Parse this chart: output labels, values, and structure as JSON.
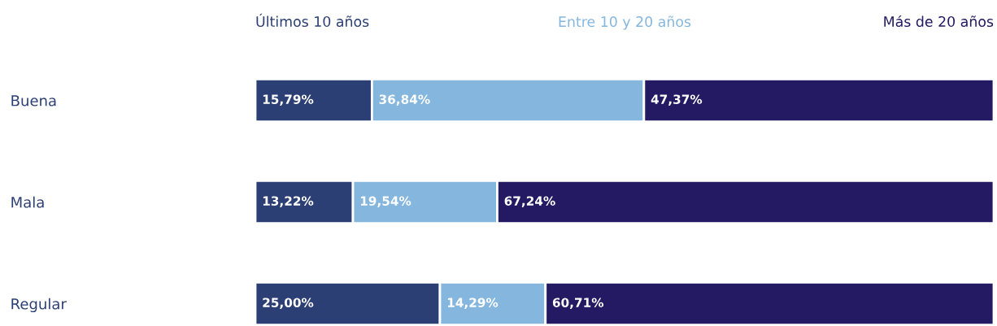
{
  "chart_data": {
    "type": "bar",
    "orientation": "horizontal",
    "stacked": true,
    "categories": [
      "Buena",
      "Mala",
      "Regular"
    ],
    "series": [
      {
        "name": "Últimos 10 años",
        "color": "#2b3f74",
        "values": [
          15.79,
          13.22,
          25.0
        ],
        "value_labels": [
          "15,79%",
          "13,22%",
          "25,00%"
        ]
      },
      {
        "name": "Entre 10 y 20 años",
        "color": "#84b6de",
        "values": [
          36.84,
          19.54,
          14.29
        ],
        "value_labels": [
          "36,84%",
          "19,54%",
          "14,29%"
        ]
      },
      {
        "name": "Más de 20 años",
        "color": "#241a63",
        "values": [
          47.37,
          67.24,
          60.71
        ],
        "value_labels": [
          "47,37%",
          "67,24%",
          "60,71%"
        ]
      }
    ],
    "xlim": [
      0,
      100
    ],
    "tick_labels": "y",
    "grid": false,
    "legend": "top"
  }
}
